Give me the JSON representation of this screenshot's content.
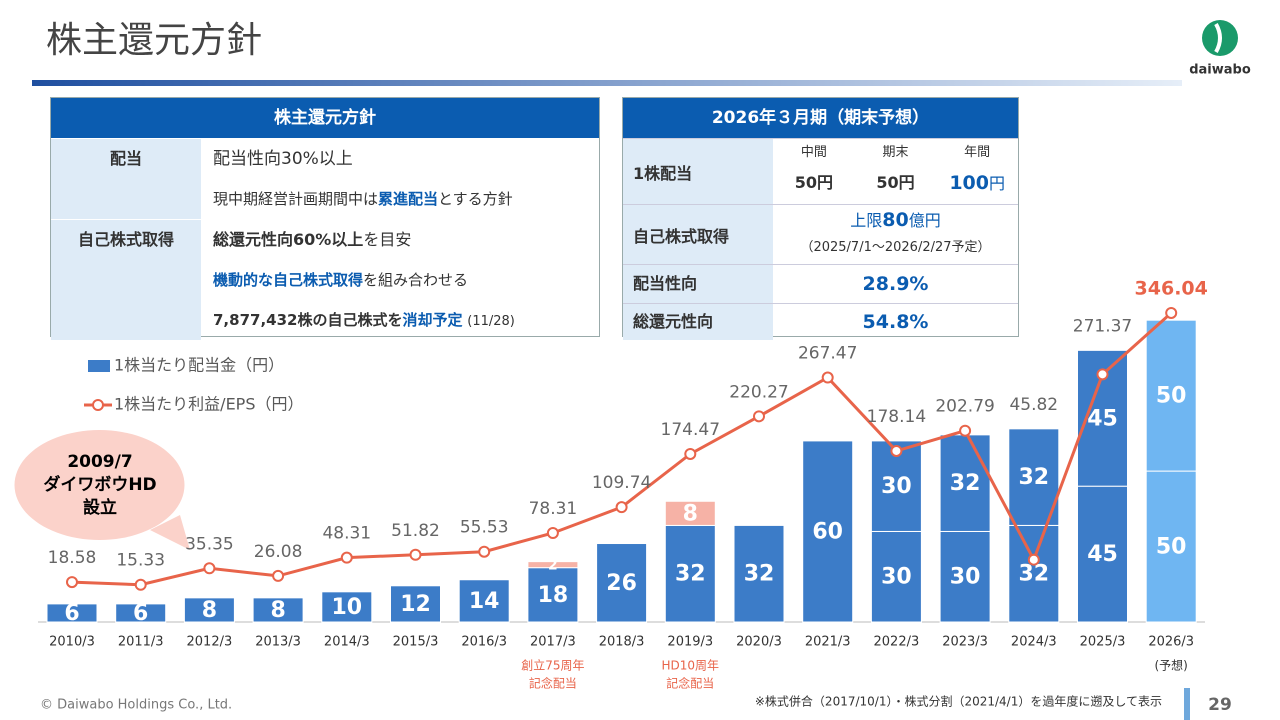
{
  "header": {
    "title": "株主還元方針",
    "logo": "daiwabo"
  },
  "policy_table": {
    "title": "株主還元方針",
    "rows": [
      {
        "label": "配当",
        "lines": [
          [
            "配当性向30%以上"
          ],
          [
            "現中期経営計画期間中は",
            "累進配当",
            "とする方針"
          ]
        ]
      },
      {
        "label": "自己株式取得",
        "lines": [
          [
            "総還元性向60%以上",
            "を目安"
          ],
          [
            "機動的な自己株式取得",
            "を組み合わせる"
          ],
          [
            "7,877,432株の自己株式を",
            "消却予定",
            "(11/28)"
          ]
        ]
      }
    ]
  },
  "forecast_table": {
    "title": "2026年３月期（期末予想）",
    "rows": [
      {
        "label": "1株配当",
        "columns": [
          "中間",
          "期末",
          "年間"
        ],
        "values": [
          {
            "value": "50",
            "unit": "円"
          },
          {
            "value": "50",
            "unit": "円"
          },
          {
            "value": "100",
            "unit": "円"
          }
        ]
      },
      {
        "label": "自己株式取得",
        "prefix": "上限",
        "value": "80",
        "unit": "億円",
        "note": "（2025/7/1～2026/2/27予定）"
      },
      {
        "label": "配当性向",
        "value": "28.9%"
      },
      {
        "label": "総還元性向",
        "value": "54.8%"
      }
    ]
  },
  "chart_data": {
    "type": "bar-line",
    "categories": [
      "2010/3",
      "2011/3",
      "2012/3",
      "2013/3",
      "2014/3",
      "2015/3",
      "2016/3",
      "2017/3",
      "2018/3",
      "2019/3",
      "2020/3",
      "2021/3",
      "2022/3",
      "2023/3",
      "2024/3",
      "2025/3",
      "2026/3"
    ],
    "x_notes": [
      null,
      null,
      null,
      null,
      null,
      null,
      null,
      [
        "創立75周年",
        "記念配当"
      ],
      null,
      [
        "HD10周年",
        "記念配当"
      ],
      null,
      null,
      null,
      null,
      null,
      null,
      [
        "(予想)"
      ]
    ],
    "series": [
      {
        "name": "1株当たり配当金（円）",
        "type": "bar",
        "color": "#3c7cc8",
        "colors": [
          "#3c7cc8",
          "#3c7cc8",
          "#3c7cc8",
          "#3c7cc8",
          "#3c7cc8",
          "#3c7cc8",
          "#3c7cc8",
          "#3c7cc8",
          "#3c7cc8",
          "#3c7cc8",
          "#3c7cc8",
          "#3c7cc8",
          "#3c7cc8",
          "#3c7cc8",
          "#3c7cc8",
          "#3c7cc8",
          "#6fb6f2"
        ],
        "values": [
          6,
          6,
          8,
          8,
          10,
          12,
          14,
          18,
          26,
          32,
          32,
          60,
          30,
          30,
          32,
          45,
          50
        ]
      },
      {
        "type": "bar",
        "color": "#3c7cc8",
        "colors": [
          null,
          null,
          null,
          null,
          null,
          null,
          null,
          null,
          null,
          null,
          null,
          null,
          "#3c7cc8",
          "#3c7cc8",
          "#3c7cc8",
          "#3c7cc8",
          "#6fb6f2"
        ],
        "values": [
          null,
          null,
          null,
          null,
          null,
          null,
          null,
          null,
          null,
          null,
          null,
          null,
          30,
          32,
          32,
          45,
          50
        ]
      },
      {
        "type": "bar",
        "color": "#f6b2a6",
        "values": [
          null,
          null,
          null,
          null,
          null,
          null,
          null,
          2,
          null,
          8,
          null,
          null,
          null,
          null,
          null,
          null,
          null
        ]
      },
      {
        "name": "1株当たり利益/EPS（円）",
        "type": "line",
        "axis": "y2",
        "color": "#e8644a",
        "values": [
          18.58,
          15.33,
          35.35,
          26.08,
          48.31,
          51.82,
          55.53,
          78.31,
          109.74,
          174.47,
          220.27,
          267.47,
          178.14,
          202.79,
          45.82,
          271.37,
          346.04
        ]
      }
    ],
    "ylim": [
      0,
      110
    ],
    "y2lim": [
      -30,
      374
    ],
    "annotation": [
      "2009/7",
      "ダイワボウHD",
      "設立"
    ]
  },
  "footer": {
    "copyright": "© Daiwabo Holdings Co., Ltd.",
    "note": "※株式併合（2017/10/1）・株式分割（2021/4/1）を過年度に遡及して表示",
    "page": "29"
  }
}
